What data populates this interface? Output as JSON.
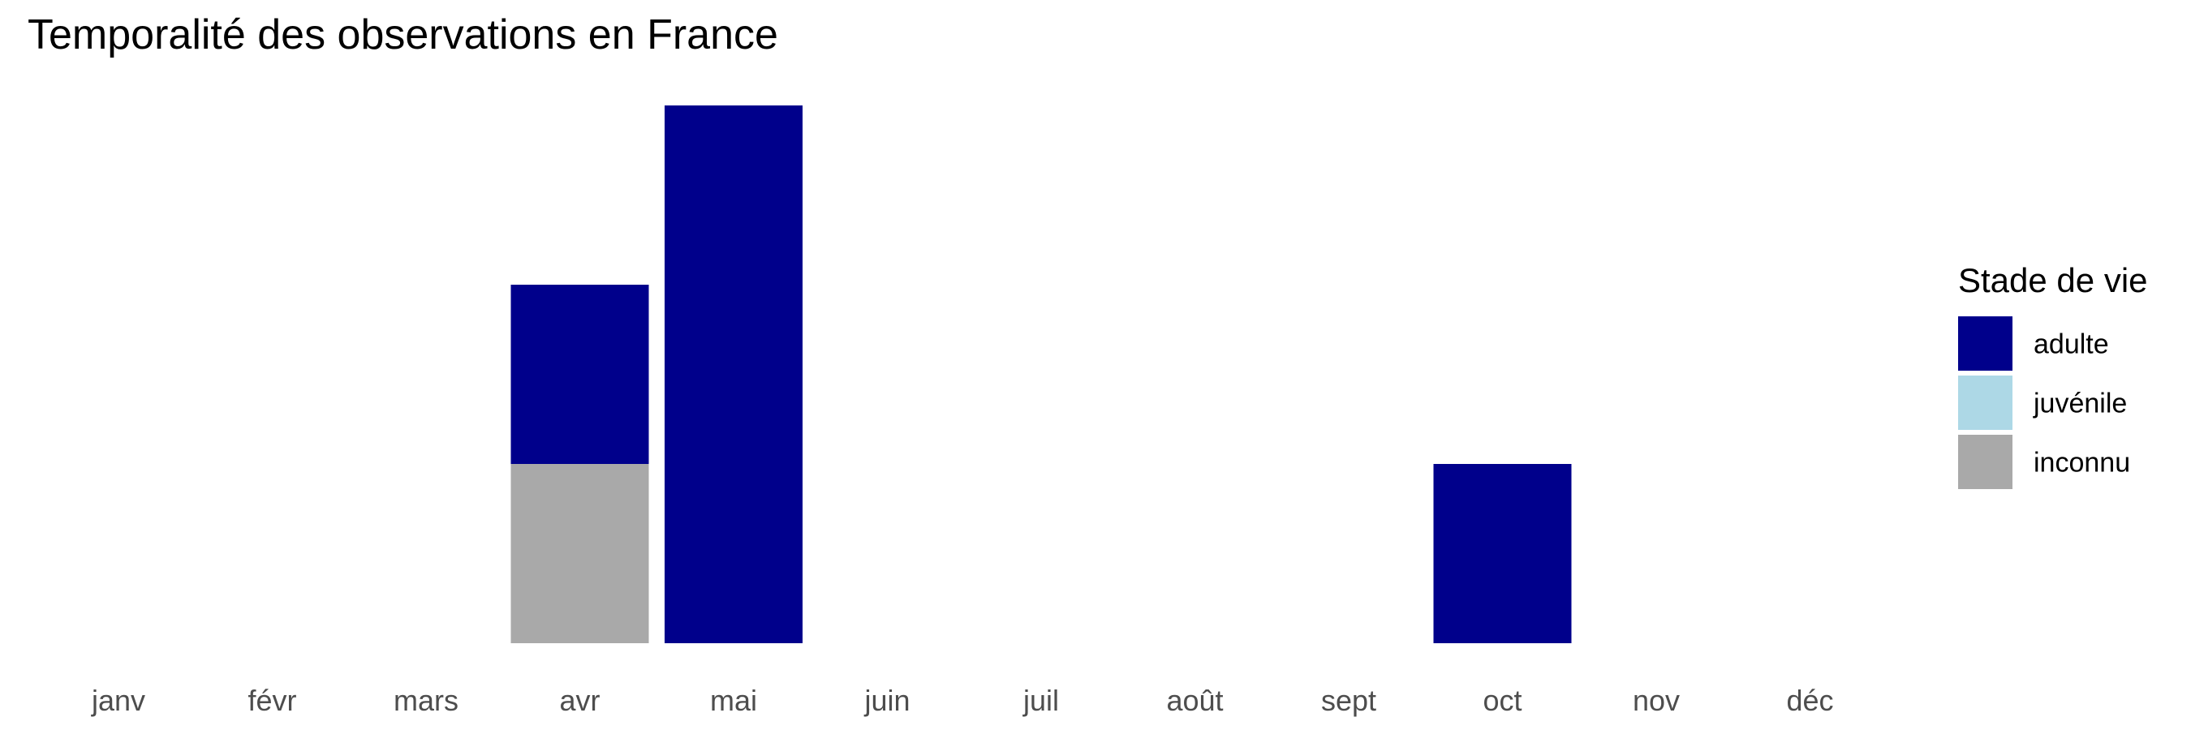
{
  "chart_data": {
    "type": "bar",
    "stacked": true,
    "title": "Temporalité des observations en France",
    "xlabel": "",
    "ylabel": "",
    "grid": false,
    "y_axis_shown": false,
    "ylim": [
      0,
      3
    ],
    "categories": [
      "janv",
      "févr",
      "mars",
      "avr",
      "mai",
      "juin",
      "juil",
      "août",
      "sept",
      "oct",
      "nov",
      "déc"
    ],
    "legend": {
      "title": "Stade de vie",
      "position": "right"
    },
    "series": [
      {
        "name": "adulte",
        "color": "#00008B",
        "values": [
          0,
          0,
          0,
          1,
          3,
          0,
          0,
          0,
          0,
          1,
          0,
          0
        ]
      },
      {
        "name": "juvénile",
        "color": "#ADD8E6",
        "values": [
          0,
          0,
          0,
          0,
          0,
          0,
          0,
          0,
          0,
          0,
          0,
          0
        ]
      },
      {
        "name": "inconnu",
        "color": "#A9A9A9",
        "values": [
          0,
          0,
          0,
          1,
          0,
          0,
          0,
          0,
          0,
          0,
          0,
          0
        ]
      }
    ]
  }
}
